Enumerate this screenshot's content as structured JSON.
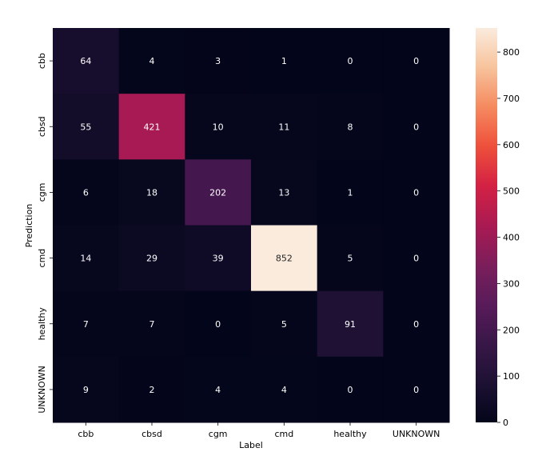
{
  "chart_data": {
    "type": "heatmap",
    "title": "",
    "xlabel": "Label",
    "ylabel": "Prediction",
    "x_categories": [
      "cbb",
      "cbsd",
      "cgm",
      "cmd",
      "healthy",
      "UNKNOWN"
    ],
    "y_categories": [
      "cbb",
      "cbsd",
      "cgm",
      "cmd",
      "healthy",
      "UNKNOWN"
    ],
    "values": [
      [
        64,
        4,
        3,
        1,
        0,
        0
      ],
      [
        55,
        421,
        10,
        11,
        8,
        0
      ],
      [
        6,
        18,
        202,
        13,
        1,
        0
      ],
      [
        14,
        29,
        39,
        852,
        5,
        0
      ],
      [
        7,
        7,
        0,
        5,
        91,
        0
      ],
      [
        9,
        2,
        4,
        4,
        0,
        0
      ]
    ],
    "colorbar": {
      "min": 0,
      "max": 852,
      "ticks": [
        0,
        100,
        200,
        300,
        400,
        500,
        600,
        700,
        800
      ],
      "colormap": "rocket"
    },
    "legend": "none",
    "grid": false
  }
}
